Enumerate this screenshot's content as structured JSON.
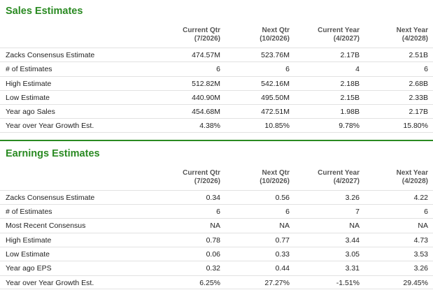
{
  "sales": {
    "title": "Sales Estimates",
    "headers": [
      {
        "line1": "Current Qtr",
        "line2": "(7/2026)"
      },
      {
        "line1": "Next Qtr",
        "line2": "(10/2026)"
      },
      {
        "line1": "Current Year",
        "line2": "(4/2027)"
      },
      {
        "line1": "Next Year",
        "line2": "(4/2028)"
      }
    ],
    "rows": [
      {
        "label": "Zacks Consensus Estimate",
        "values": [
          "474.57M",
          "523.76M",
          "2.17B",
          "2.51B"
        ]
      },
      {
        "label": "# of Estimates",
        "values": [
          "6",
          "6",
          "4",
          "6"
        ]
      },
      {
        "label": "High Estimate",
        "values": [
          "512.82M",
          "542.16M",
          "2.18B",
          "2.68B"
        ]
      },
      {
        "label": "Low Estimate",
        "values": [
          "440.90M",
          "495.50M",
          "2.15B",
          "2.33B"
        ]
      },
      {
        "label": "Year ago Sales",
        "values": [
          "454.68M",
          "472.51M",
          "1.98B",
          "2.17B"
        ]
      },
      {
        "label": "Year over Year Growth Est.",
        "values": [
          "4.38%",
          "10.85%",
          "9.78%",
          "15.80%"
        ]
      }
    ]
  },
  "earnings": {
    "title": "Earnings Estimates",
    "headers": [
      {
        "line1": "Current Qtr",
        "line2": "(7/2026)"
      },
      {
        "line1": "Next Qtr",
        "line2": "(10/2026)"
      },
      {
        "line1": "Current Year",
        "line2": "(4/2027)"
      },
      {
        "line1": "Next Year",
        "line2": "(4/2028)"
      }
    ],
    "rows": [
      {
        "label": "Zacks Consensus Estimate",
        "values": [
          "0.34",
          "0.56",
          "3.26",
          "4.22"
        ]
      },
      {
        "label": "# of Estimates",
        "values": [
          "6",
          "6",
          "7",
          "6"
        ]
      },
      {
        "label": "Most Recent Consensus",
        "values": [
          "NA",
          "NA",
          "NA",
          "NA"
        ]
      },
      {
        "label": "High Estimate",
        "values": [
          "0.78",
          "0.77",
          "3.44",
          "4.73"
        ]
      },
      {
        "label": "Low Estimate",
        "values": [
          "0.06",
          "0.33",
          "3.05",
          "3.53"
        ]
      },
      {
        "label": "Year ago EPS",
        "values": [
          "0.32",
          "0.44",
          "3.31",
          "3.26"
        ]
      },
      {
        "label": "Year over Year Growth Est.",
        "values": [
          "6.25%",
          "27.27%",
          "-1.51%",
          "29.45%"
        ]
      }
    ]
  },
  "colors": {
    "accent": "#2a8a22",
    "rule": "#e2e2e2"
  }
}
